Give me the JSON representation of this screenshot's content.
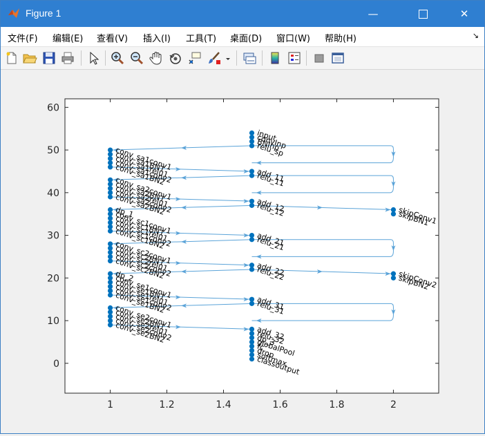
{
  "window": {
    "title": "Figure 1"
  },
  "menu": [
    "文件(F)",
    "编辑(E)",
    "查看(V)",
    "插入(I)",
    "工具(T)",
    "桌面(D)",
    "窗口(W)",
    "帮助(H)"
  ],
  "toolbar": [
    "new-file-icon",
    "open-folder-icon",
    "save-icon",
    "print-icon",
    "pointer-icon",
    "zoom-in-icon",
    "zoom-out-icon",
    "pan-hand-icon",
    "rotate-3d-icon",
    "data-cursor-icon",
    "brush-icon",
    "brush-dropdown-icon",
    "link-plot-icon",
    "colorbar-icon",
    "legend-icon",
    "hide-plot-tools-icon",
    "show-plot-tools-icon"
  ],
  "colors": {
    "edge": "#5aa3d8",
    "node": "#0072bd",
    "titlebar": "#2f7fd1"
  },
  "chart_data": {
    "type": "scatter",
    "xlim": [
      0.84,
      2.16
    ],
    "ylim": [
      -7,
      62
    ],
    "xticks": [
      1,
      1.2,
      1.4,
      1.6,
      1.8,
      2
    ],
    "xtick_labels": [
      "1",
      "1.2",
      "1.4",
      "1.6",
      "1.8",
      "2"
    ],
    "yticks": [
      0,
      10,
      20,
      30,
      40,
      50,
      60
    ],
    "ytick_labels": [
      "0",
      "10",
      "20",
      "30",
      "40",
      "50",
      "60"
    ],
    "nodes": [
      {
        "label": "input",
        "x": 1.5,
        "y": 54
      },
      {
        "label": "convInp",
        "x": 1.5,
        "y": 53
      },
      {
        "label": "BNInp",
        "x": 1.5,
        "y": 52
      },
      {
        "label": "relu_sp",
        "x": 1.5,
        "y": 51
      },
      {
        "label": "conv_sa1conv1",
        "x": 1,
        "y": 50
      },
      {
        "label": "conv_sa1BN1",
        "x": 1,
        "y": 49
      },
      {
        "label": "conv_sa1relu1",
        "x": 1,
        "y": 48
      },
      {
        "label": "conv_sa1conv2",
        "x": 1,
        "y": 47
      },
      {
        "label": "conv_sa1BN2",
        "x": 1,
        "y": 46
      },
      {
        "label": "add_11",
        "x": 1.5,
        "y": 45
      },
      {
        "label": "relu_11",
        "x": 1.5,
        "y": 44
      },
      {
        "label": "conv_sa2conv1",
        "x": 1,
        "y": 43
      },
      {
        "label": "conv_sa2BN1",
        "x": 1,
        "y": 42
      },
      {
        "label": "conv_sa2relu1",
        "x": 1,
        "y": 41
      },
      {
        "label": "conv_sa2conv2",
        "x": 1,
        "y": 40
      },
      {
        "label": "conv_sa2BN2",
        "x": 1,
        "y": 39
      },
      {
        "label": "add_12",
        "x": 1.5,
        "y": 38
      },
      {
        "label": "relu_12",
        "x": 1.5,
        "y": 37
      },
      {
        "label": "dp_1",
        "x": 1,
        "y": 36
      },
      {
        "label": "skipConv1",
        "x": 2,
        "y": 36
      },
      {
        "label": "conv_sc1conv1",
        "x": 1,
        "y": 35
      },
      {
        "label": "skipBN1",
        "x": 2,
        "y": 35
      },
      {
        "label": "conv_sc1BN1",
        "x": 1,
        "y": 34
      },
      {
        "label": "conv_sc1relu1",
        "x": 1,
        "y": 33
      },
      {
        "label": "conv_sc1conv2",
        "x": 1,
        "y": 32
      },
      {
        "label": "conv_sc1BN2",
        "x": 1,
        "y": 31
      },
      {
        "label": "add_21",
        "x": 1.5,
        "y": 30
      },
      {
        "label": "relu_21",
        "x": 1.5,
        "y": 29
      },
      {
        "label": "conv_sc2conv1",
        "x": 1,
        "y": 28
      },
      {
        "label": "conv_sc2BN1",
        "x": 1,
        "y": 27
      },
      {
        "label": "conv_sc2relu1",
        "x": 1,
        "y": 26
      },
      {
        "label": "conv_sc2conv2",
        "x": 1,
        "y": 25
      },
      {
        "label": "conv_sc2BN2",
        "x": 1,
        "y": 24
      },
      {
        "label": "add_22",
        "x": 1.5,
        "y": 23
      },
      {
        "label": "relu_22",
        "x": 1.5,
        "y": 22
      },
      {
        "label": "dp_2",
        "x": 1,
        "y": 21
      },
      {
        "label": "skipConv2",
        "x": 2,
        "y": 21
      },
      {
        "label": "conv_se1conv1",
        "x": 1,
        "y": 20
      },
      {
        "label": "skipBN2",
        "x": 2,
        "y": 20
      },
      {
        "label": "conv_se1BN1",
        "x": 1,
        "y": 19
      },
      {
        "label": "conv_se1relu1",
        "x": 1,
        "y": 18
      },
      {
        "label": "conv_se1conv2",
        "x": 1,
        "y": 17
      },
      {
        "label": "conv_se1BN2",
        "x": 1,
        "y": 16
      },
      {
        "label": "add_31",
        "x": 1.5,
        "y": 15
      },
      {
        "label": "relu_31",
        "x": 1.5,
        "y": 14
      },
      {
        "label": "conv_se2conv1",
        "x": 1,
        "y": 13
      },
      {
        "label": "conv_se2BN1",
        "x": 1,
        "y": 12
      },
      {
        "label": "conv_se2relu1",
        "x": 1,
        "y": 11
      },
      {
        "label": "conv_se2conv2",
        "x": 1,
        "y": 10
      },
      {
        "label": "conv_se2BN2",
        "x": 1,
        "y": 9
      },
      {
        "label": "add_32",
        "x": 1.5,
        "y": 8
      },
      {
        "label": "relu_32",
        "x": 1.5,
        "y": 7
      },
      {
        "label": "dp_3",
        "x": 1.5,
        "y": 6
      },
      {
        "label": "globalPool",
        "x": 1.5,
        "y": 5
      },
      {
        "label": "fc",
        "x": 1.5,
        "y": 4
      },
      {
        "label": "drop",
        "x": 1.5,
        "y": 3
      },
      {
        "label": "softmax",
        "x": 1.5,
        "y": 2
      },
      {
        "label": "classoutput",
        "x": 1.5,
        "y": 1
      }
    ],
    "edges": [
      [
        1.5,
        51,
        1,
        50,
        "left"
      ],
      [
        1.5,
        51,
        2,
        51,
        "bypass"
      ],
      [
        1,
        46,
        1.5,
        45,
        "right"
      ],
      [
        1.5,
        44,
        1,
        43,
        "left"
      ],
      [
        1.5,
        44,
        2,
        44,
        "bypass"
      ],
      [
        1,
        39,
        1.5,
        38,
        "right"
      ],
      [
        1.5,
        37,
        2,
        36,
        "right"
      ],
      [
        1.5,
        37,
        1,
        36,
        "left"
      ],
      [
        1,
        31,
        1.5,
        30,
        "right"
      ],
      [
        1.5,
        29,
        1,
        28,
        "left"
      ],
      [
        1.5,
        29,
        2,
        29,
        "bypass"
      ],
      [
        1,
        24,
        1.5,
        23,
        "right"
      ],
      [
        1.5,
        22,
        2,
        21,
        "right"
      ],
      [
        1.5,
        22,
        1,
        21,
        "left"
      ],
      [
        1,
        16,
        1.5,
        15,
        "right"
      ],
      [
        1.5,
        14,
        1,
        13,
        "left"
      ],
      [
        1.5,
        14,
        2,
        14,
        "bypass"
      ],
      [
        1,
        9,
        1.5,
        8,
        "right"
      ]
    ]
  }
}
